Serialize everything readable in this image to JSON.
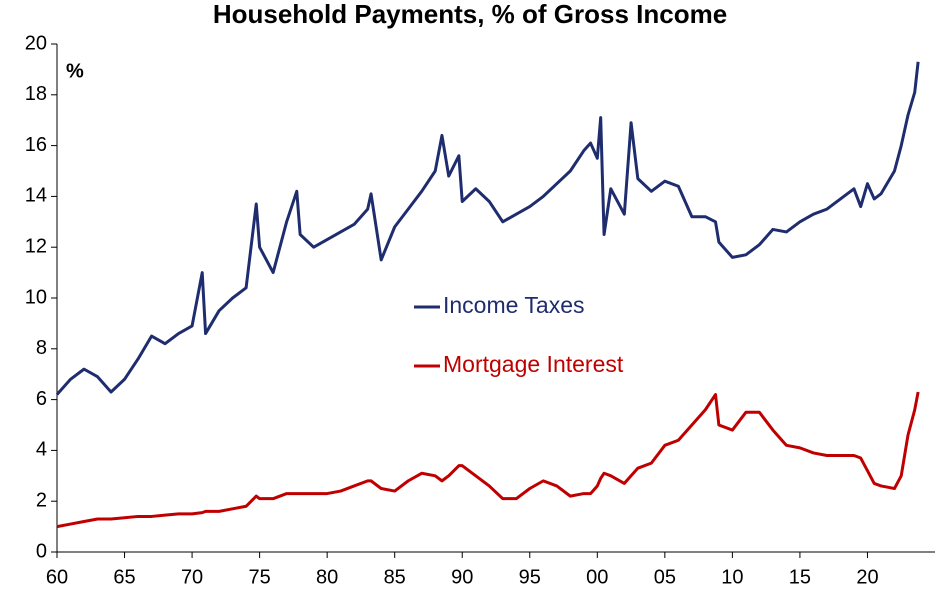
{
  "chart_data": {
    "type": "line",
    "title": "Household Payments, % of Gross Income",
    "y_label": "%",
    "x": [
      1960,
      1961,
      1962,
      1963,
      1964,
      1965,
      1966,
      1967,
      1968,
      1969,
      1970,
      1970.75,
      1971,
      1972,
      1973,
      1974,
      1974.75,
      1975,
      1976,
      1977,
      1977.75,
      1978,
      1979,
      1980,
      1981,
      1982,
      1983,
      1983.25,
      1984,
      1985,
      1986,
      1987,
      1988,
      1988.5,
      1989,
      1989.75,
      1990,
      1991,
      1992,
      1993,
      1994,
      1995,
      1996,
      1997,
      1998,
      1999,
      1999.5,
      2000,
      2000.25,
      2000.5,
      2001,
      2002,
      2002.5,
      2003,
      2004,
      2005,
      2006,
      2007,
      2008,
      2008.75,
      2009,
      2010,
      2011,
      2012,
      2013,
      2014,
      2015,
      2016,
      2017,
      2018,
      2019,
      2019.5,
      2020,
      2020.5,
      2021,
      2022,
      2022.5,
      2023,
      2023.5,
      2023.75
    ],
    "series": [
      {
        "name": "Income Taxes",
        "color": "#1f2d6e",
        "values": [
          6.2,
          6.8,
          7.2,
          6.9,
          6.3,
          6.8,
          7.6,
          8.5,
          8.2,
          8.6,
          8.9,
          11.0,
          8.6,
          9.5,
          10.0,
          10.4,
          13.7,
          12.0,
          11.0,
          13.0,
          14.2,
          12.5,
          12.0,
          12.3,
          12.6,
          12.9,
          13.5,
          14.1,
          11.5,
          12.8,
          13.5,
          14.2,
          15.0,
          16.4,
          14.8,
          15.6,
          13.8,
          14.3,
          13.8,
          13.0,
          13.3,
          13.6,
          14.0,
          14.5,
          15.0,
          15.8,
          16.1,
          15.5,
          17.1,
          12.5,
          14.3,
          13.3,
          16.9,
          14.7,
          14.2,
          14.6,
          14.4,
          13.2,
          13.2,
          13.0,
          12.2,
          11.6,
          11.7,
          12.1,
          12.7,
          12.6,
          13.0,
          13.3,
          13.5,
          13.9,
          14.3,
          13.6,
          14.5,
          13.9,
          14.1,
          15.0,
          16.0,
          17.2,
          18.1,
          19.3
        ]
      },
      {
        "name": "Mortgage Interest",
        "color": "#c00000",
        "values": [
          1.0,
          1.1,
          1.2,
          1.3,
          1.3,
          1.35,
          1.4,
          1.4,
          1.45,
          1.5,
          1.5,
          1.55,
          1.6,
          1.6,
          1.7,
          1.8,
          2.2,
          2.1,
          2.1,
          2.3,
          2.3,
          2.3,
          2.3,
          2.3,
          2.4,
          2.6,
          2.8,
          2.8,
          2.5,
          2.4,
          2.8,
          3.1,
          3.0,
          2.8,
          3.0,
          3.4,
          3.4,
          3.0,
          2.6,
          2.1,
          2.1,
          2.5,
          2.8,
          2.6,
          2.2,
          2.3,
          2.3,
          2.6,
          2.9,
          3.1,
          3.0,
          2.7,
          3.0,
          3.3,
          3.5,
          4.2,
          4.4,
          5.0,
          5.6,
          6.2,
          5.0,
          4.8,
          5.5,
          5.5,
          4.8,
          4.2,
          4.1,
          3.9,
          3.8,
          3.8,
          3.8,
          3.7,
          3.2,
          2.7,
          2.6,
          2.5,
          3.0,
          4.6,
          5.6,
          6.3
        ]
      }
    ],
    "xlim": [
      1960,
      2025
    ],
    "ylim": [
      0,
      20
    ],
    "xticks": [
      {
        "value": 1960,
        "label": "60"
      },
      {
        "value": 1965,
        "label": "65"
      },
      {
        "value": 1970,
        "label": "70"
      },
      {
        "value": 1975,
        "label": "75"
      },
      {
        "value": 1980,
        "label": "80"
      },
      {
        "value": 1985,
        "label": "85"
      },
      {
        "value": 1990,
        "label": "90"
      },
      {
        "value": 1995,
        "label": "95"
      },
      {
        "value": 2000,
        "label": "00"
      },
      {
        "value": 2005,
        "label": "05"
      },
      {
        "value": 2010,
        "label": "10"
      },
      {
        "value": 2015,
        "label": "15"
      },
      {
        "value": 2020,
        "label": "20"
      }
    ],
    "yticks": [
      0,
      2,
      4,
      6,
      8,
      10,
      12,
      14,
      16,
      18,
      20
    ]
  }
}
